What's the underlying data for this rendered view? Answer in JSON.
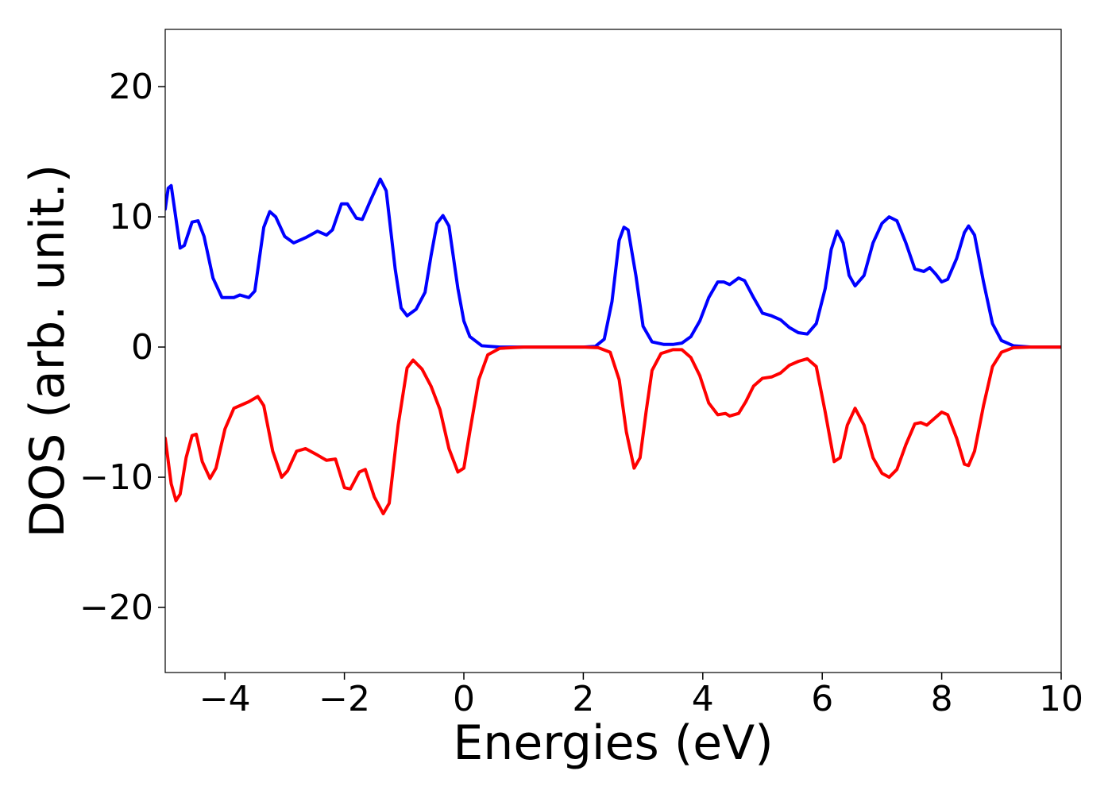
{
  "chart_data": {
    "type": "line",
    "title": "",
    "xlabel": "Energies (eV)",
    "ylabel": "DOS (arb. unit.)",
    "xlim": [
      -5,
      10
    ],
    "ylim": [
      -25,
      24.4
    ],
    "xticks": [
      -4,
      -2,
      0,
      2,
      4,
      6,
      8,
      10
    ],
    "yticks": [
      -20,
      -10,
      0,
      10,
      20
    ],
    "xtick_labels": [
      "−4",
      "−2",
      "0",
      "2",
      "4",
      "6",
      "8",
      "10"
    ],
    "ytick_labels": [
      "−20",
      "−10",
      "0",
      "10",
      "20"
    ],
    "grid": false,
    "legend": "none",
    "series": [
      {
        "color": "#0000ff",
        "points": [
          [
            -5.0,
            10.6
          ],
          [
            -4.95,
            12.2
          ],
          [
            -4.9,
            12.4
          ],
          [
            -4.84,
            10.5
          ],
          [
            -4.75,
            7.6
          ],
          [
            -4.68,
            7.8
          ],
          [
            -4.55,
            9.6
          ],
          [
            -4.45,
            9.7
          ],
          [
            -4.35,
            8.5
          ],
          [
            -4.2,
            5.3
          ],
          [
            -4.05,
            3.8
          ],
          [
            -3.85,
            3.8
          ],
          [
            -3.75,
            4.0
          ],
          [
            -3.6,
            3.8
          ],
          [
            -3.5,
            4.3
          ],
          [
            -3.35,
            9.2
          ],
          [
            -3.25,
            10.4
          ],
          [
            -3.15,
            10.0
          ],
          [
            -3.0,
            8.5
          ],
          [
            -2.85,
            8.0
          ],
          [
            -2.65,
            8.4
          ],
          [
            -2.45,
            8.9
          ],
          [
            -2.3,
            8.6
          ],
          [
            -2.2,
            9.0
          ],
          [
            -2.05,
            11.0
          ],
          [
            -1.95,
            11.0
          ],
          [
            -1.8,
            9.9
          ],
          [
            -1.7,
            9.8
          ],
          [
            -1.55,
            11.4
          ],
          [
            -1.4,
            12.9
          ],
          [
            -1.3,
            12.0
          ],
          [
            -1.15,
            6.0
          ],
          [
            -1.05,
            3.0
          ],
          [
            -0.95,
            2.4
          ],
          [
            -0.8,
            2.9
          ],
          [
            -0.65,
            4.2
          ],
          [
            -0.55,
            7.0
          ],
          [
            -0.45,
            9.5
          ],
          [
            -0.35,
            10.1
          ],
          [
            -0.25,
            9.3
          ],
          [
            -0.1,
            4.5
          ],
          [
            0.0,
            2.0
          ],
          [
            0.1,
            0.8
          ],
          [
            0.3,
            0.1
          ],
          [
            0.6,
            0.0
          ],
          [
            1.0,
            0.0
          ],
          [
            1.5,
            0.0
          ],
          [
            2.0,
            0.0
          ],
          [
            2.2,
            0.05
          ],
          [
            2.35,
            0.6
          ],
          [
            2.48,
            3.5
          ],
          [
            2.6,
            8.2
          ],
          [
            2.68,
            9.2
          ],
          [
            2.75,
            9.0
          ],
          [
            2.88,
            5.5
          ],
          [
            3.0,
            1.6
          ],
          [
            3.15,
            0.4
          ],
          [
            3.35,
            0.2
          ],
          [
            3.5,
            0.2
          ],
          [
            3.65,
            0.3
          ],
          [
            3.8,
            0.8
          ],
          [
            3.95,
            2.0
          ],
          [
            4.1,
            3.8
          ],
          [
            4.25,
            5.0
          ],
          [
            4.35,
            5.0
          ],
          [
            4.45,
            4.8
          ],
          [
            4.6,
            5.3
          ],
          [
            4.7,
            5.1
          ],
          [
            4.85,
            3.8
          ],
          [
            5.0,
            2.6
          ],
          [
            5.15,
            2.4
          ],
          [
            5.3,
            2.1
          ],
          [
            5.45,
            1.5
          ],
          [
            5.6,
            1.1
          ],
          [
            5.75,
            1.0
          ],
          [
            5.9,
            1.8
          ],
          [
            6.05,
            4.5
          ],
          [
            6.15,
            7.5
          ],
          [
            6.25,
            8.9
          ],
          [
            6.35,
            8.0
          ],
          [
            6.45,
            5.5
          ],
          [
            6.55,
            4.7
          ],
          [
            6.7,
            5.5
          ],
          [
            6.85,
            8.0
          ],
          [
            7.0,
            9.5
          ],
          [
            7.12,
            10.0
          ],
          [
            7.25,
            9.7
          ],
          [
            7.4,
            8.0
          ],
          [
            7.55,
            6.0
          ],
          [
            7.7,
            5.8
          ],
          [
            7.8,
            6.1
          ],
          [
            7.9,
            5.6
          ],
          [
            8.0,
            5.0
          ],
          [
            8.1,
            5.2
          ],
          [
            8.25,
            6.8
          ],
          [
            8.38,
            8.8
          ],
          [
            8.45,
            9.3
          ],
          [
            8.55,
            8.6
          ],
          [
            8.7,
            5.0
          ],
          [
            8.85,
            1.8
          ],
          [
            9.0,
            0.5
          ],
          [
            9.2,
            0.1
          ],
          [
            9.5,
            0.0
          ],
          [
            10.0,
            0.0
          ]
        ]
      },
      {
        "color": "#ff0000",
        "points": [
          [
            -5.0,
            -7.0
          ],
          [
            -4.9,
            -10.5
          ],
          [
            -4.82,
            -11.8
          ],
          [
            -4.75,
            -11.3
          ],
          [
            -4.65,
            -8.5
          ],
          [
            -4.55,
            -6.8
          ],
          [
            -4.48,
            -6.7
          ],
          [
            -4.38,
            -8.8
          ],
          [
            -4.25,
            -10.1
          ],
          [
            -4.15,
            -9.3
          ],
          [
            -4.0,
            -6.3
          ],
          [
            -3.85,
            -4.7
          ],
          [
            -3.7,
            -4.4
          ],
          [
            -3.6,
            -4.2
          ],
          [
            -3.45,
            -3.8
          ],
          [
            -3.35,
            -4.5
          ],
          [
            -3.2,
            -8.0
          ],
          [
            -3.05,
            -10.0
          ],
          [
            -2.95,
            -9.5
          ],
          [
            -2.8,
            -8.0
          ],
          [
            -2.65,
            -7.8
          ],
          [
            -2.45,
            -8.3
          ],
          [
            -2.3,
            -8.7
          ],
          [
            -2.15,
            -8.6
          ],
          [
            -2.0,
            -10.8
          ],
          [
            -1.9,
            -10.9
          ],
          [
            -1.75,
            -9.6
          ],
          [
            -1.65,
            -9.4
          ],
          [
            -1.5,
            -11.5
          ],
          [
            -1.35,
            -12.8
          ],
          [
            -1.25,
            -12.0
          ],
          [
            -1.1,
            -6.0
          ],
          [
            -0.95,
            -1.6
          ],
          [
            -0.85,
            -1.0
          ],
          [
            -0.7,
            -1.7
          ],
          [
            -0.55,
            -3.0
          ],
          [
            -0.4,
            -4.8
          ],
          [
            -0.25,
            -7.8
          ],
          [
            -0.1,
            -9.6
          ],
          [
            0.0,
            -9.3
          ],
          [
            0.1,
            -6.5
          ],
          [
            0.25,
            -2.5
          ],
          [
            0.4,
            -0.6
          ],
          [
            0.6,
            -0.1
          ],
          [
            1.0,
            0.0
          ],
          [
            1.5,
            0.0
          ],
          [
            2.0,
            0.0
          ],
          [
            2.25,
            -0.05
          ],
          [
            2.45,
            -0.4
          ],
          [
            2.6,
            -2.5
          ],
          [
            2.72,
            -6.5
          ],
          [
            2.85,
            -9.3
          ],
          [
            2.95,
            -8.5
          ],
          [
            3.05,
            -5.0
          ],
          [
            3.15,
            -1.8
          ],
          [
            3.3,
            -0.5
          ],
          [
            3.5,
            -0.2
          ],
          [
            3.65,
            -0.2
          ],
          [
            3.8,
            -0.8
          ],
          [
            3.95,
            -2.2
          ],
          [
            4.1,
            -4.3
          ],
          [
            4.25,
            -5.2
          ],
          [
            4.38,
            -5.1
          ],
          [
            4.45,
            -5.3
          ],
          [
            4.6,
            -5.1
          ],
          [
            4.72,
            -4.2
          ],
          [
            4.85,
            -3.0
          ],
          [
            5.0,
            -2.4
          ],
          [
            5.15,
            -2.3
          ],
          [
            5.3,
            -2.0
          ],
          [
            5.45,
            -1.4
          ],
          [
            5.6,
            -1.1
          ],
          [
            5.75,
            -0.9
          ],
          [
            5.9,
            -1.5
          ],
          [
            6.05,
            -5.0
          ],
          [
            6.2,
            -8.8
          ],
          [
            6.3,
            -8.5
          ],
          [
            6.42,
            -6.0
          ],
          [
            6.55,
            -4.7
          ],
          [
            6.7,
            -6.0
          ],
          [
            6.85,
            -8.5
          ],
          [
            7.0,
            -9.7
          ],
          [
            7.12,
            -10.0
          ],
          [
            7.25,
            -9.4
          ],
          [
            7.4,
            -7.5
          ],
          [
            7.55,
            -5.9
          ],
          [
            7.65,
            -5.8
          ],
          [
            7.75,
            -6.0
          ],
          [
            7.85,
            -5.6
          ],
          [
            8.0,
            -5.0
          ],
          [
            8.1,
            -5.2
          ],
          [
            8.25,
            -7.0
          ],
          [
            8.38,
            -9.0
          ],
          [
            8.45,
            -9.1
          ],
          [
            8.55,
            -8.0
          ],
          [
            8.7,
            -4.5
          ],
          [
            8.85,
            -1.5
          ],
          [
            9.0,
            -0.4
          ],
          [
            9.2,
            -0.05
          ],
          [
            9.5,
            0.0
          ],
          [
            10.0,
            0.0
          ]
        ]
      }
    ]
  }
}
